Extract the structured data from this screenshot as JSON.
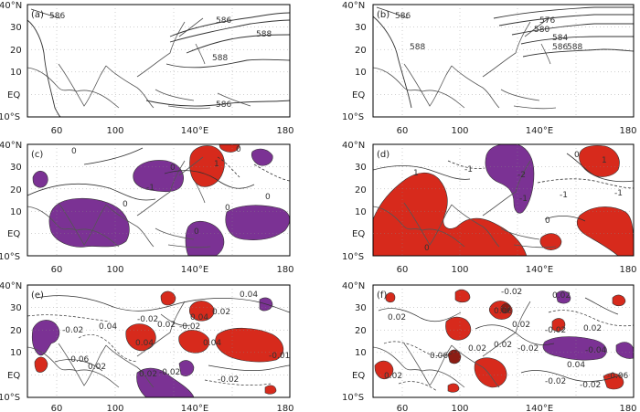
{
  "colors": {
    "positive_anomaly": "#d72a1c",
    "negative_anomaly": "#7b3294",
    "contour": "#333333",
    "coastline": "#555555",
    "frame": "#000000"
  },
  "axes": {
    "y_ticks": [
      "40°N",
      "30",
      "20",
      "10",
      "EQ",
      "10°S"
    ],
    "x_ticks": [
      "60",
      "100",
      "140°E",
      "180"
    ]
  },
  "panels": [
    {
      "id": "a",
      "label": "(a)",
      "contour_labels": [
        "586",
        "586",
        "588",
        "588",
        "586"
      ]
    },
    {
      "id": "b",
      "label": "(b)",
      "contour_labels": [
        "586",
        "576",
        "580",
        "584",
        "586",
        "588",
        "588"
      ]
    },
    {
      "id": "c",
      "label": "(c)",
      "contour_labels": [
        "0",
        "-1",
        "0",
        "0",
        "1",
        "0",
        "0",
        "0",
        "0"
      ]
    },
    {
      "id": "d",
      "label": "(d)",
      "contour_labels": [
        "1",
        "-1",
        "-2",
        "-1",
        "0",
        "-1",
        "0",
        "1",
        "0",
        "-1"
      ]
    },
    {
      "id": "e",
      "label": "(e)",
      "contour_labels": [
        "0.04",
        "0.02",
        "-0.02",
        "0.04",
        "-0.06",
        "0.04",
        "0.02",
        "-0.02",
        "0.02",
        "-0.02",
        "0.04",
        "-0.02",
        "0.02",
        "-0.02",
        "0.04",
        "-0.01"
      ]
    },
    {
      "id": "f",
      "label": "(f)",
      "contour_labels": [
        "0.02",
        "-0.02",
        "0.02",
        "0.06",
        "0.02",
        "-0.02",
        "0.06",
        "0.02",
        "0.02",
        "-0.02",
        "0.02",
        "-0.04",
        "-0.06",
        "0.04",
        "-0.02",
        "0.02",
        "-0.02"
      ]
    }
  ]
}
